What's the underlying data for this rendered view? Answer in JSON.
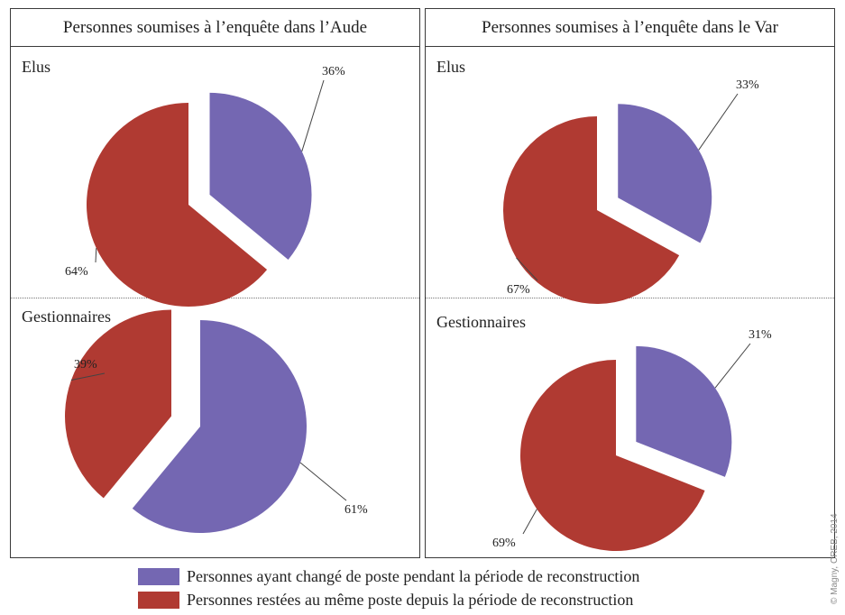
{
  "colors": {
    "changed": "#7467b2",
    "stayed": "#b03a32",
    "leader": "#444444"
  },
  "chart_data": [
    {
      "type": "pie",
      "title": "Personnes soumises à l’enquête dans l’Aude",
      "section": "Elus",
      "slices": [
        {
          "key": "changed",
          "value": 36,
          "label": "36%"
        },
        {
          "key": "stayed",
          "value": 64,
          "label": "64%"
        }
      ]
    },
    {
      "type": "pie",
      "title": "Personnes soumises à l’enquête dans l’Aude",
      "section": "Gestionnaires",
      "slices": [
        {
          "key": "changed",
          "value": 61,
          "label": "61%"
        },
        {
          "key": "stayed",
          "value": 39,
          "label": "39%"
        }
      ]
    },
    {
      "type": "pie",
      "title": "Personnes soumises à l’enquête dans le Var",
      "section": "Elus",
      "slices": [
        {
          "key": "changed",
          "value": 33,
          "label": "33%"
        },
        {
          "key": "stayed",
          "value": 67,
          "label": "67%"
        }
      ]
    },
    {
      "type": "pie",
      "title": "Personnes soumises à l’enquête dans le Var",
      "section": "Gestionnaires",
      "slices": [
        {
          "key": "changed",
          "value": 31,
          "label": "31%"
        },
        {
          "key": "stayed",
          "value": 69,
          "label": "69%"
        }
      ]
    }
  ],
  "panels": {
    "aude": {
      "title": "Personnes soumises à l’enquête dans l’Aude",
      "top_section": "Elus",
      "bottom_section": "Gestionnaires"
    },
    "var": {
      "title": "Personnes soumises à l’enquête dans le Var",
      "top_section": "Elus",
      "bottom_section": "Gestionnaires"
    }
  },
  "legend": [
    {
      "key": "changed",
      "label": "Personnes ayant changé de poste pendant la période de reconstruction"
    },
    {
      "key": "stayed",
      "label": "Personnes restées au même poste depuis la période de reconstruction"
    }
  ],
  "side_credit": "© Magny, CREB, 2014"
}
